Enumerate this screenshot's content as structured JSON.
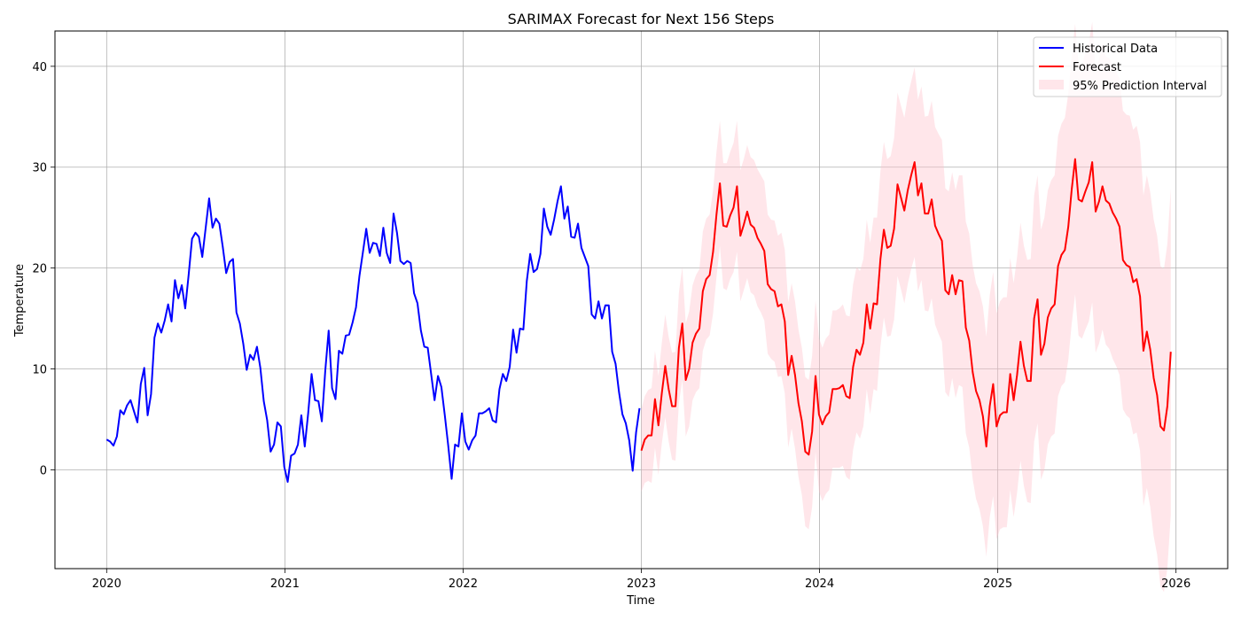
{
  "chart_data": {
    "type": "line",
    "title": "SARIMAX Forecast for Next 156 Steps",
    "xlabel": "Time",
    "ylabel": "Temperature",
    "xlim": [
      2019.71,
      2026.29
    ],
    "ylim": [
      -9.8,
      43.5
    ],
    "x_ticks": [
      2020,
      2021,
      2022,
      2023,
      2024,
      2025,
      2026
    ],
    "x_tick_labels": [
      "2020",
      "2021",
      "2022",
      "2023",
      "2024",
      "2025",
      "2026"
    ],
    "y_ticks": [
      0,
      10,
      20,
      30,
      40
    ],
    "y_tick_labels": [
      "0",
      "10",
      "20",
      "30",
      "40"
    ],
    "grid": true,
    "legend_position": "top-right",
    "series": [
      {
        "name": "Historical Data",
        "color": "#0000ff",
        "kind": "line",
        "start": 2020.0,
        "step_weeks": 1,
        "values": [
          3.0,
          2.8,
          2.4,
          3.3,
          5.9,
          5.5,
          6.4,
          6.9,
          5.8,
          4.7,
          8.5,
          10.1,
          5.4,
          7.5,
          13.1,
          14.5,
          13.6,
          14.8,
          16.4,
          14.7,
          18.8,
          17.0,
          18.3,
          16.0,
          19.3,
          22.9,
          23.5,
          23.1,
          21.1,
          24.0,
          26.9,
          24.0,
          24.9,
          24.4,
          22.1,
          19.5,
          20.6,
          20.9,
          15.6,
          14.5,
          12.5,
          9.9,
          11.4,
          10.9,
          12.2,
          10.1,
          6.8,
          4.9,
          1.8,
          2.5,
          4.7,
          4.3,
          0.3,
          -1.2,
          1.4,
          1.6,
          2.5,
          5.4,
          2.3,
          5.6,
          9.5,
          6.9,
          6.8,
          4.8,
          9.8,
          13.8,
          8.1,
          7.0,
          11.8,
          11.5,
          13.3,
          13.4,
          14.6,
          16.1,
          19.2,
          21.5,
          23.9,
          21.5,
          22.5,
          22.4,
          21.2,
          24.0,
          21.5,
          20.5,
          25.4,
          23.5,
          20.7,
          20.4,
          20.7,
          20.5,
          17.5,
          16.5,
          13.8,
          12.2,
          12.1,
          9.5,
          6.9,
          9.3,
          8.2,
          5.4,
          2.4,
          -0.9,
          2.5,
          2.3,
          5.6,
          2.8,
          2.0,
          2.9,
          3.4,
          5.6,
          5.6,
          5.8,
          6.1,
          4.9,
          4.7,
          8.0,
          9.5,
          8.8,
          10.2,
          13.9,
          11.6,
          14.0,
          13.9,
          18.7,
          21.4,
          19.6,
          19.9,
          21.4,
          25.9,
          24.1,
          23.3,
          24.8,
          26.6,
          28.1,
          24.9,
          26.1,
          23.1,
          23.0,
          24.4,
          22.0,
          21.1,
          20.2,
          15.4,
          15.0,
          16.7,
          15.0,
          16.3,
          16.3,
          11.7,
          10.5,
          7.7,
          5.5,
          4.6,
          2.9,
          -0.1,
          3.7,
          6.1
        ]
      },
      {
        "name": "Forecast",
        "color": "#ff0000",
        "kind": "line",
        "start": 2023.0,
        "step_weeks": 1,
        "values": [
          1.9,
          3.0,
          3.4,
          3.4,
          7.0,
          4.4,
          7.6,
          10.3,
          8.0,
          6.3,
          6.3,
          12.1,
          14.5,
          8.9,
          10.0,
          12.6,
          13.5,
          14.0,
          17.7,
          18.9,
          19.3,
          21.6,
          25.3,
          28.4,
          24.2,
          24.1,
          25.2,
          26.0,
          28.1,
          23.2,
          24.3,
          25.6,
          24.3,
          24.0,
          23.0,
          22.4,
          21.7,
          18.4,
          17.9,
          17.7,
          16.2,
          16.4,
          14.7,
          9.4,
          11.3,
          9.4,
          6.6,
          4.8,
          1.8,
          1.5,
          3.8,
          9.3,
          5.5,
          4.5,
          5.3,
          5.7,
          8.0,
          8.0,
          8.1,
          8.4,
          7.3,
          7.1,
          10.2,
          11.9,
          11.4,
          12.6,
          16.4,
          14.0,
          16.5,
          16.4,
          20.9,
          23.8,
          22.0,
          22.2,
          23.9,
          28.3,
          27.0,
          25.7,
          27.7,
          29.2,
          30.5,
          27.2,
          28.4,
          25.4,
          25.4,
          26.8,
          24.2,
          23.4,
          22.7,
          17.8,
          17.4,
          19.3,
          17.4,
          18.8,
          18.7,
          14.1,
          12.8,
          9.7,
          7.8,
          6.9,
          5.3,
          2.3,
          6.3,
          8.5,
          4.3,
          5.4,
          5.7,
          5.7,
          9.5,
          6.9,
          9.4,
          12.7,
          10.3,
          8.8,
          8.8,
          15.0,
          16.9,
          11.4,
          12.5,
          15.1,
          16.0,
          16.4,
          20.2,
          21.3,
          21.8,
          24.1,
          27.8,
          30.8,
          26.8,
          26.6,
          27.6,
          28.5,
          30.5,
          25.6,
          26.6,
          28.1,
          26.7,
          26.4,
          25.5,
          24.9,
          24.1,
          20.8,
          20.3,
          20.1,
          18.6,
          18.9,
          17.2,
          11.8,
          13.7,
          11.9,
          9.1,
          7.4,
          4.3,
          3.9,
          6.3,
          11.7
        ]
      },
      {
        "name": "95% Prediction Interval",
        "color": "#ffc0cb",
        "kind": "band",
        "start": 2023.0,
        "step_weeks": 1,
        "lower": [
          -2.2,
          -1.3,
          -1.1,
          -1.3,
          2.2,
          -0.5,
          2.6,
          5.2,
          2.8,
          1.0,
          0.9,
          6.6,
          8.9,
          3.3,
          4.3,
          6.9,
          7.7,
          8.1,
          11.8,
          12.9,
          13.3,
          15.5,
          19.1,
          22.2,
          18.0,
          17.8,
          18.9,
          19.6,
          21.6,
          16.7,
          17.8,
          19.0,
          17.6,
          17.3,
          16.2,
          15.6,
          14.8,
          11.5,
          11.0,
          10.7,
          9.2,
          9.3,
          7.6,
          2.2,
          4.1,
          2.1,
          -0.7,
          -2.5,
          -5.6,
          -5.9,
          -3.7,
          1.8,
          -2.1,
          -3.1,
          -2.4,
          -2.0,
          0.2,
          0.2,
          0.2,
          0.4,
          -0.7,
          -1.0,
          2.0,
          3.7,
          3.1,
          4.3,
          8.0,
          5.5,
          8.0,
          7.8,
          12.2,
          15.1,
          13.2,
          13.3,
          14.9,
          19.2,
          17.9,
          16.5,
          18.4,
          19.9,
          21.1,
          17.7,
          18.8,
          15.8,
          15.7,
          17.0,
          14.4,
          13.5,
          12.7,
          7.7,
          7.2,
          9.1,
          7.1,
          8.4,
          8.2,
          3.6,
          2.2,
          -0.9,
          -2.9,
          -3.9,
          -5.6,
          -8.6,
          -4.7,
          -2.6,
          -6.9,
          -5.9,
          -5.7,
          -5.7,
          -2.0,
          -4.7,
          -2.3,
          0.9,
          -1.6,
          -3.2,
          -3.3,
          2.8,
          4.6,
          -1.0,
          0.0,
          2.5,
          3.3,
          3.6,
          7.3,
          8.3,
          8.7,
          10.9,
          14.5,
          17.4,
          13.3,
          13.0,
          13.9,
          14.7,
          16.6,
          11.6,
          12.5,
          13.9,
          12.4,
          12.0,
          11.0,
          10.3,
          9.4,
          6.0,
          5.4,
          5.1,
          3.5,
          3.7,
          1.9,
          -3.6,
          -1.8,
          -3.7,
          -6.6,
          -8.4,
          -11.6,
          -12.1,
          -9.8,
          -4.5
        ],
        "upper": [
          6.0,
          7.3,
          7.9,
          8.1,
          11.8,
          9.3,
          12.6,
          15.4,
          13.2,
          11.6,
          11.7,
          17.6,
          20.1,
          14.5,
          15.7,
          18.3,
          19.3,
          19.9,
          23.6,
          24.9,
          25.3,
          27.7,
          31.5,
          34.6,
          30.4,
          30.4,
          31.5,
          32.4,
          34.6,
          29.7,
          30.8,
          32.2,
          31.0,
          30.7,
          29.8,
          29.2,
          28.6,
          25.3,
          24.8,
          24.7,
          23.2,
          23.5,
          21.8,
          16.6,
          18.5,
          16.7,
          13.9,
          12.1,
          9.2,
          8.9,
          11.3,
          16.8,
          13.1,
          12.1,
          13.0,
          13.4,
          15.8,
          15.8,
          16.0,
          16.4,
          15.3,
          15.2,
          18.4,
          20.1,
          19.7,
          20.9,
          24.8,
          22.5,
          25.0,
          25.0,
          29.6,
          32.5,
          30.8,
          31.1,
          32.9,
          37.4,
          36.1,
          34.9,
          37.0,
          38.5,
          39.9,
          36.7,
          38.0,
          35.0,
          35.1,
          36.6,
          34.0,
          33.3,
          32.7,
          27.9,
          27.6,
          29.5,
          27.7,
          29.2,
          29.2,
          24.6,
          23.4,
          20.3,
          18.5,
          17.7,
          16.2,
          13.2,
          17.3,
          19.6,
          15.5,
          16.7,
          17.1,
          17.1,
          21.0,
          18.5,
          21.1,
          24.5,
          22.2,
          20.8,
          20.9,
          27.2,
          29.2,
          23.8,
          25.0,
          27.7,
          28.7,
          29.2,
          33.1,
          34.3,
          34.9,
          37.3,
          41.1,
          44.2,
          40.3,
          40.2,
          41.3,
          42.3,
          44.4,
          39.6,
          40.7,
          42.3,
          41.0,
          40.8,
          40.0,
          39.5,
          38.8,
          35.6,
          35.2,
          35.1,
          33.7,
          34.1,
          32.5,
          27.2,
          29.2,
          27.5,
          24.8,
          23.2,
          20.2,
          19.9,
          22.4,
          27.9
        ]
      }
    ]
  }
}
